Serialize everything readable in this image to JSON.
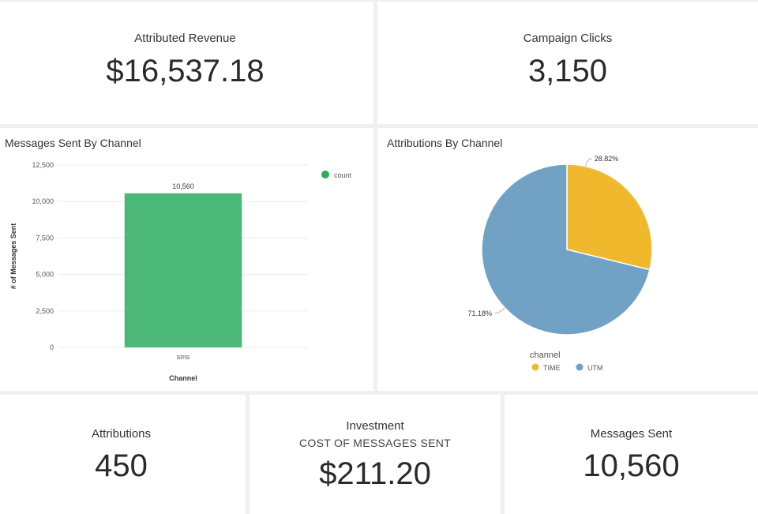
{
  "kpis": {
    "attributed_revenue": {
      "label": "Attributed Revenue",
      "value": "$16,537.18"
    },
    "campaign_clicks": {
      "label": "Campaign Clicks",
      "value": "3,150"
    },
    "attributions": {
      "label": "Attributions",
      "value": "450"
    },
    "investment": {
      "label": "Investment",
      "sublabel": "COST OF MESSAGES SENT",
      "value": "$211.20"
    },
    "messages_sent": {
      "label": "Messages Sent",
      "value": "10,560"
    }
  },
  "colors": {
    "bar": "#4bb877",
    "pie_time": "#f0b92d",
    "pie_utm": "#72a1c6",
    "grid": "#ebebeb",
    "legend_count": "#2eae5c"
  },
  "chart_data": [
    {
      "type": "bar",
      "title": "Messages Sent By Channel",
      "xlabel": "Channel",
      "ylabel": "# of Messages Sent",
      "categories": [
        "sms"
      ],
      "series": [
        {
          "name": "count",
          "values": [
            10560
          ]
        }
      ],
      "data_labels": [
        "10,560"
      ],
      "ylim": [
        0,
        12500
      ],
      "yticks": [
        0,
        2500,
        5000,
        7500,
        10000,
        12500
      ],
      "ytick_labels": [
        "0",
        "2,500",
        "5,000",
        "7,500",
        "10,000",
        "12,500"
      ],
      "grid": true,
      "legend": "top-right"
    },
    {
      "type": "pie",
      "title": "Attributions By Channel",
      "legend_title": "channel",
      "slices": [
        {
          "label": "TIME",
          "value": 28.82,
          "text": "28.82%"
        },
        {
          "label": "UTM",
          "value": 71.18,
          "text": "71.18%"
        }
      ],
      "legend": "bottom"
    }
  ]
}
